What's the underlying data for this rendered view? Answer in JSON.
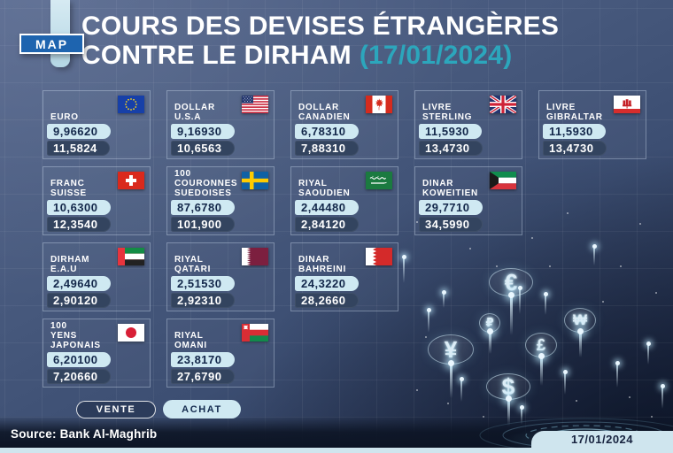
{
  "header": {
    "logo": "MAP",
    "title_line1": "COURS DES DEVISES ÉTRANGÈRES",
    "title_line2": "CONTRE LE DIRHAM",
    "date_paren": "(17/01/2024)"
  },
  "legend": {
    "vente": "VENTE",
    "achat": "ACHAT"
  },
  "footer": {
    "source": "Source: Bank Al-Maghrib",
    "date": "17/01/2024"
  },
  "colors": {
    "accent_teal": "#2CA6BC",
    "pill_light": "#CFE9F2",
    "pill_dark": "#33445F",
    "background": "#47597D",
    "logo_blue": "#1E64AF",
    "strip_light": "#CFE5EE"
  },
  "decor_symbols": [
    "€",
    "₽",
    "₩",
    "¥",
    "£",
    "$"
  ],
  "cards": [
    {
      "name": "EURO",
      "flag": "eu",
      "achat": "9,96620",
      "vente": "11,5824",
      "row": 0
    },
    {
      "name": "DOLLAR\nU.S.A",
      "flag": "usa",
      "achat": "9,16930",
      "vente": "10,6563",
      "row": 0
    },
    {
      "name": "DOLLAR\nCANADIEN",
      "flag": "canada",
      "achat": "6,78310",
      "vente": "7,88310",
      "row": 0
    },
    {
      "name": "LIVRE\nSTERLING",
      "flag": "uk",
      "achat": "11,5930",
      "vente": "13,4730",
      "row": 0
    },
    {
      "name": "LIVRE\nGIBRALTAR",
      "flag": "gibraltar",
      "achat": "11,5930",
      "vente": "13,4730",
      "row": 0
    },
    {
      "name": "FRANC\nSUISSE",
      "flag": "switzerland",
      "achat": "10,6300",
      "vente": "12,3540",
      "row": 1
    },
    {
      "name": "100\nCOURONNES\nSUEDOISES",
      "flag": "sweden",
      "achat": "87,6780",
      "vente": "101,900",
      "row": 1
    },
    {
      "name": "RIYAL\nSAOUDIEN",
      "flag": "saudi",
      "achat": "2,44480",
      "vente": "2,84120",
      "row": 1
    },
    {
      "name": "DINAR\nKOWEITIEN",
      "flag": "kuwait",
      "achat": "29,7710",
      "vente": "34,5990",
      "row": 1
    },
    {
      "name": "DIRHAM\nE.A.U",
      "flag": "uae",
      "achat": "2,49640",
      "vente": "2,90120",
      "row": 2
    },
    {
      "name": "RIYAL\nQATARI",
      "flag": "qatar",
      "achat": "2,51530",
      "vente": "2,92310",
      "row": 2
    },
    {
      "name": "DINAR\nBAHREINI",
      "flag": "bahrain",
      "achat": "24,3220",
      "vente": "28,2660",
      "row": 2
    },
    {
      "name": "100\nYENS\nJAPONAIS",
      "flag": "japan",
      "achat": "6,20100",
      "vente": "7,20660",
      "row": 3
    },
    {
      "name": "RIYAL\nOMANI",
      "flag": "oman",
      "achat": "23,8170",
      "vente": "27,6790",
      "row": 3
    }
  ],
  "chart_data": {
    "type": "table",
    "title": "COURS DES DEVISES ÉTRANGÈRES CONTRE LE DIRHAM (17/01/2024)",
    "source": "Bank Al-Maghrib",
    "date": "17/01/2024",
    "categories": [
      "EURO",
      "DOLLAR U.S.A",
      "DOLLAR CANADIEN",
      "LIVRE STERLING",
      "LIVRE GIBRALTAR",
      "FRANC SUISSE",
      "100 COURONNES SUEDOISES",
      "RIYAL SAOUDIEN",
      "DINAR KOWEITIEN",
      "DIRHAM E.A.U",
      "RIYAL QATARI",
      "DINAR BAHREINI",
      "100 YENS JAPONAIS",
      "RIYAL OMANI"
    ],
    "series": [
      {
        "name": "ACHAT",
        "values": [
          9.9662,
          9.1693,
          6.7831,
          11.593,
          11.593,
          10.63,
          87.678,
          2.4448,
          29.771,
          2.4964,
          2.5153,
          24.322,
          6.201,
          23.817
        ]
      },
      {
        "name": "VENTE",
        "values": [
          11.5824,
          10.6563,
          7.8831,
          13.473,
          13.473,
          12.354,
          101.9,
          2.8412,
          34.599,
          2.9012,
          2.9231,
          28.266,
          7.2066,
          27.679
        ]
      }
    ],
    "legend_position": "bottom-left"
  }
}
